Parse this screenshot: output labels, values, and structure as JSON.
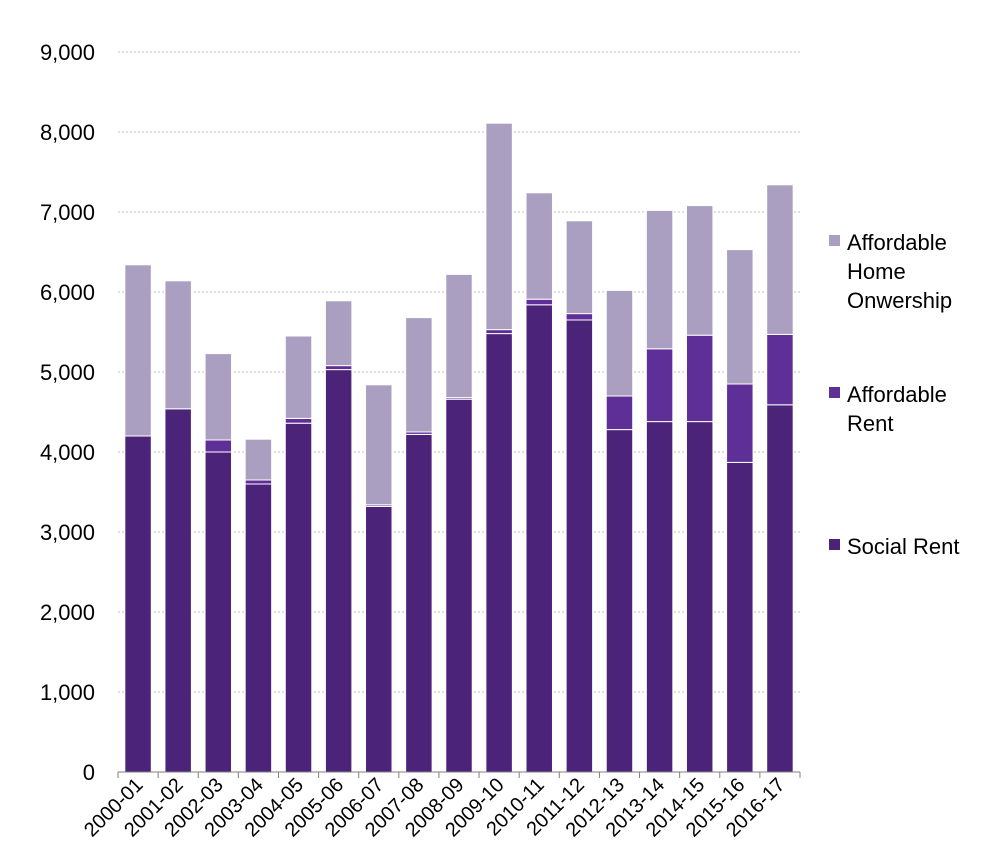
{
  "chart_data": {
    "type": "bar",
    "stacked": true,
    "title": "",
    "xlabel": "",
    "ylabel": "",
    "ylim": [
      0,
      9000
    ],
    "yticks": [
      0,
      1000,
      2000,
      3000,
      4000,
      5000,
      6000,
      7000,
      8000,
      9000
    ],
    "ytick_labels": [
      "0",
      "1,000",
      "2,000",
      "3,000",
      "4,000",
      "5,000",
      "6,000",
      "7,000",
      "8,000",
      "9,000"
    ],
    "grid": true,
    "legend_position": "right",
    "categories": [
      "2000-01",
      "2001-02",
      "2002-03",
      "2003-04",
      "2004-05",
      "2005-06",
      "2006-07",
      "2007-08",
      "2008-09",
      "2009-10",
      "2010-11",
      "2011-12",
      "2012-13",
      "2013-14",
      "2014-15",
      "2015-16",
      "2016-17"
    ],
    "series": [
      {
        "name": "Social Rent",
        "color": "#4b2378",
        "values": [
          4200,
          4540,
          4000,
          3600,
          4360,
          5030,
          3320,
          4220,
          4660,
          5480,
          5840,
          5650,
          4280,
          4380,
          4380,
          3870,
          4590
        ]
      },
      {
        "name": "Affordable Rent",
        "color": "#5f2f98",
        "values": [
          0,
          0,
          150,
          50,
          60,
          50,
          20,
          30,
          20,
          50,
          70,
          80,
          420,
          910,
          1080,
          980,
          880
        ]
      },
      {
        "name": "Affordable Home Onwership",
        "color": "#ab9fc1",
        "values": [
          2140,
          1600,
          1080,
          510,
          1030,
          810,
          1500,
          1430,
          1540,
          2580,
          1330,
          1160,
          1320,
          1730,
          1620,
          1680,
          1870
        ]
      }
    ],
    "legend": [
      {
        "series": "Affordable Home Onwership",
        "lines": [
          "Affordable",
          "Home",
          "Onwership"
        ],
        "color": "#ab9fc1"
      },
      {
        "series": "Affordable Rent",
        "lines": [
          "Affordable",
          "Rent"
        ],
        "color": "#5f2f98"
      },
      {
        "series": "Social Rent",
        "lines": [
          "Social Rent"
        ],
        "color": "#4b2378"
      }
    ]
  }
}
